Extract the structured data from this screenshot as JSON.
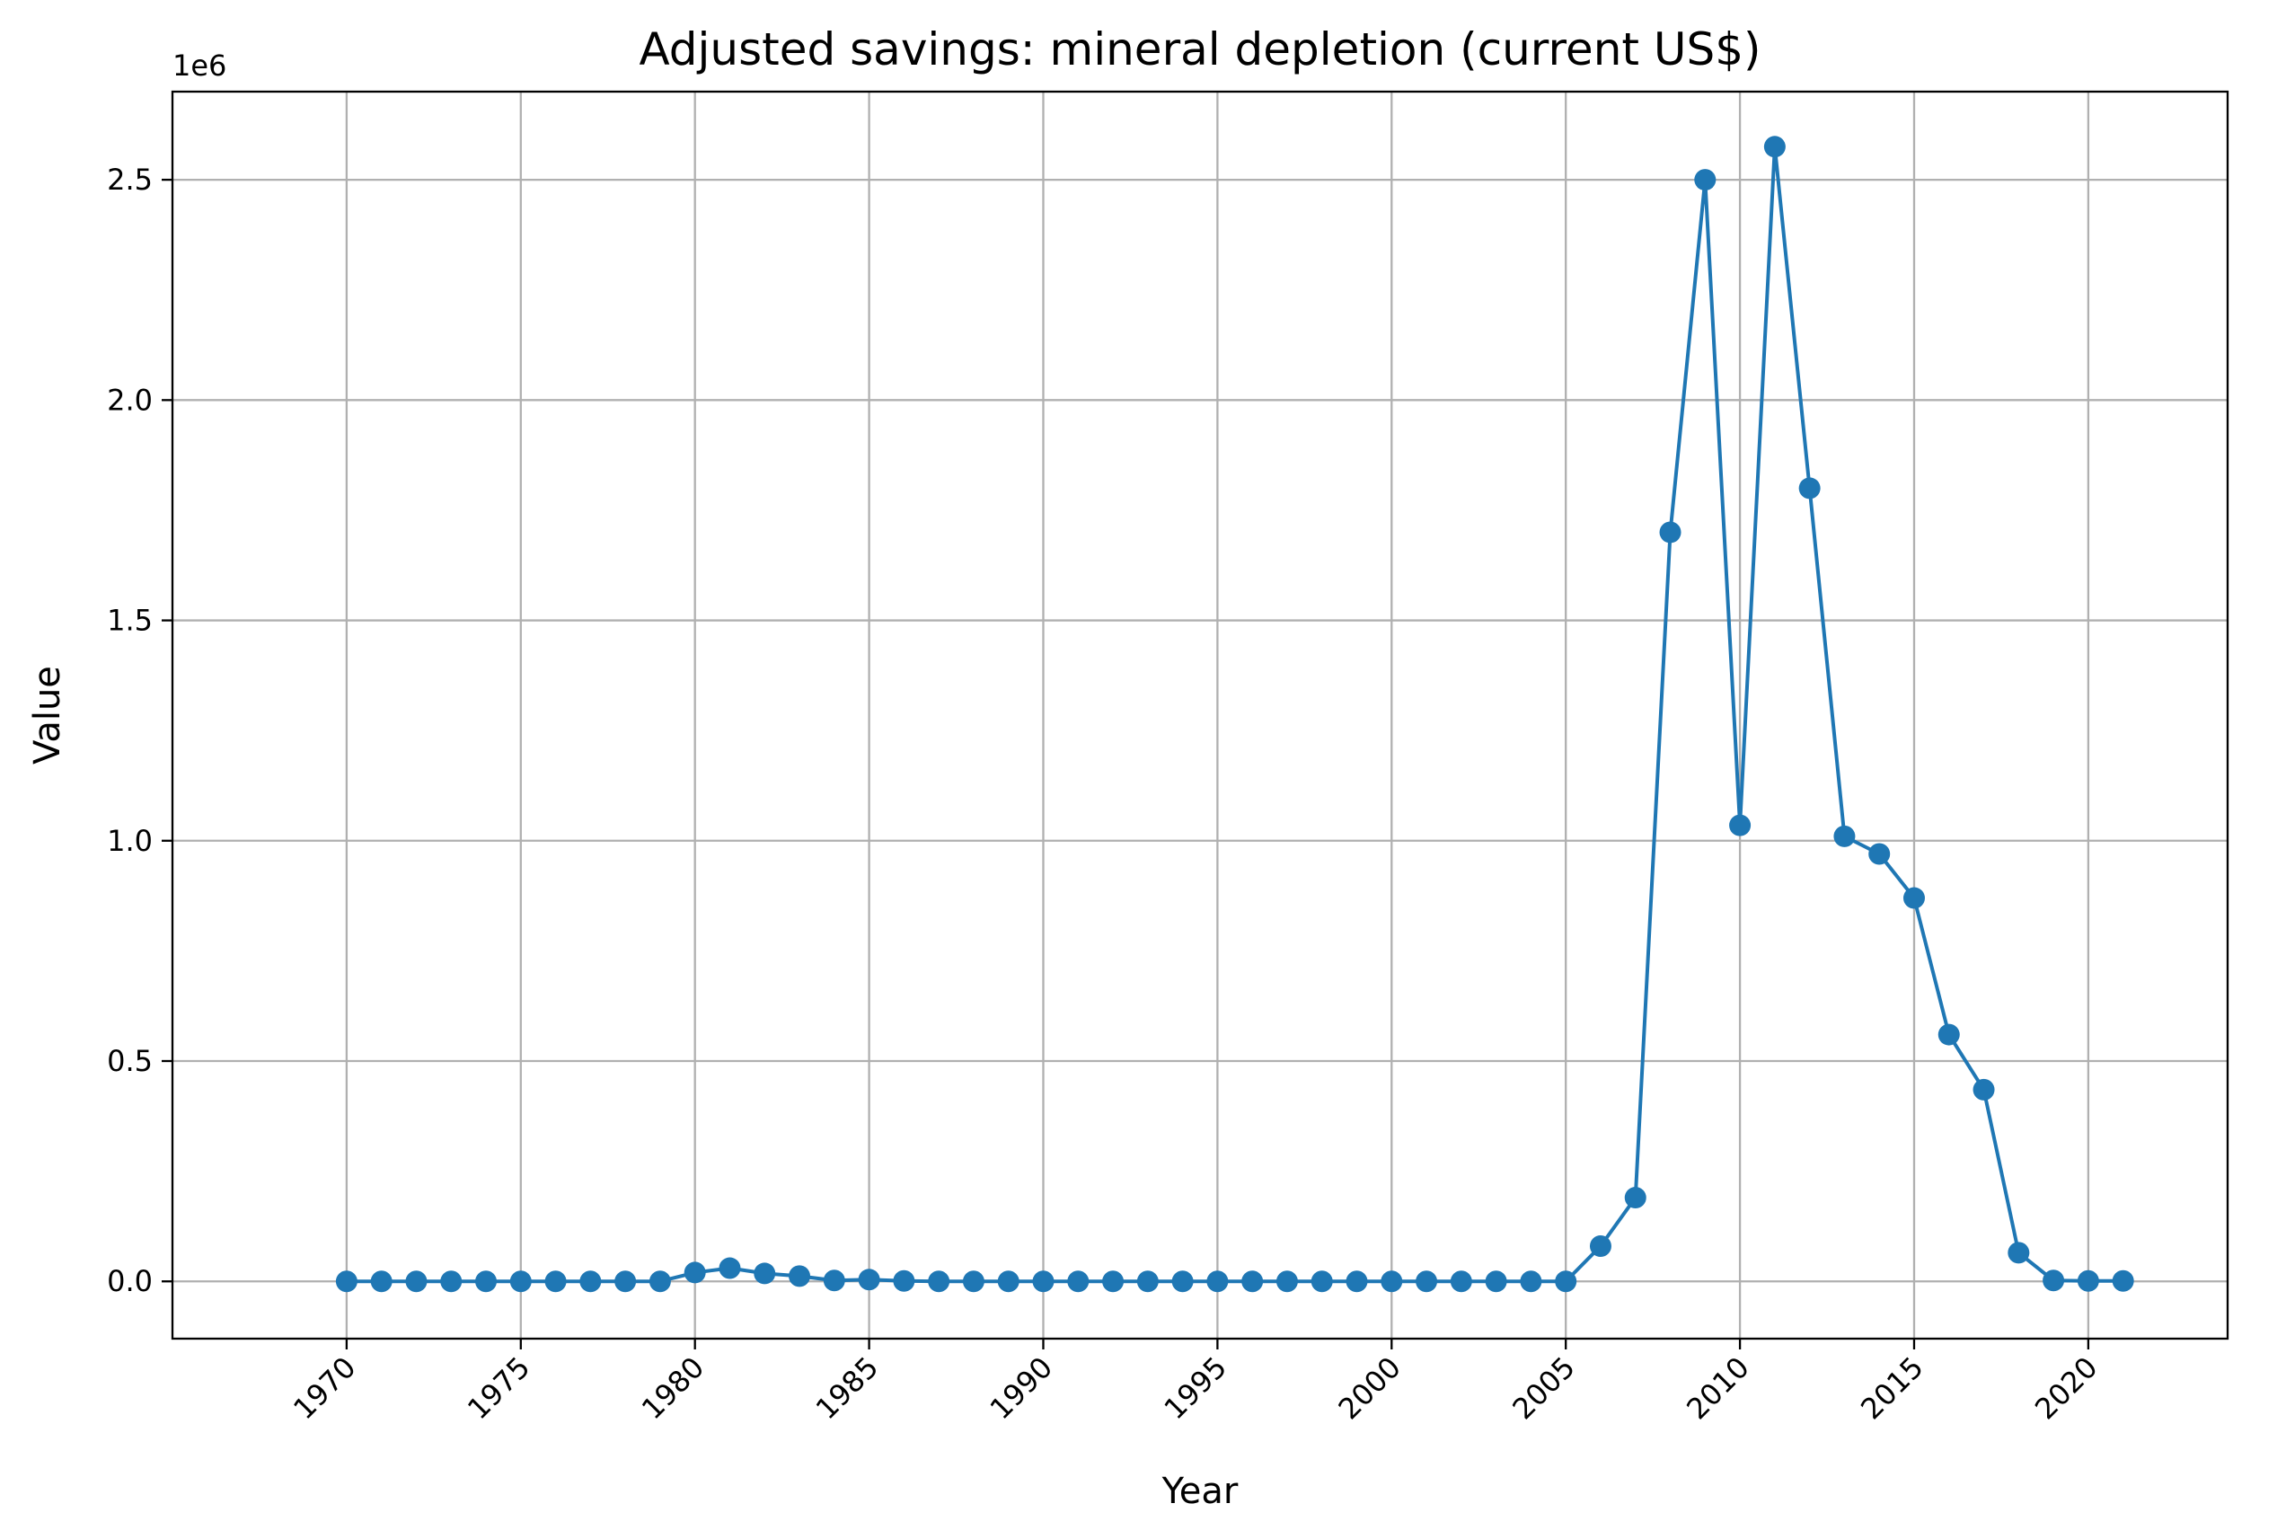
{
  "chart_data": {
    "type": "line",
    "title": "Adjusted savings: mineral depletion (current US$)",
    "xlabel": "Year",
    "ylabel": "Value",
    "y_offset_label": "1e6",
    "xlim": [
      1965,
      2024
    ],
    "ylim": [
      -0.13,
      2.7
    ],
    "y_units_multiplier": 1000000,
    "xticks": [
      1970,
      1975,
      1980,
      1985,
      1990,
      1995,
      2000,
      2005,
      2010,
      2015,
      2020
    ],
    "yticks": [
      0.0,
      0.5,
      1.0,
      1.5,
      2.0,
      2.5
    ],
    "ytick_labels": [
      "0.0",
      "0.5",
      "1.0",
      "1.5",
      "2.0",
      "2.5"
    ],
    "grid": true,
    "series": [
      {
        "color": "#1f77b4",
        "marker": "circle",
        "x": [
          1970,
          1971,
          1972,
          1973,
          1974,
          1975,
          1976,
          1977,
          1978,
          1979,
          1980,
          1981,
          1982,
          1983,
          1984,
          1985,
          1986,
          1987,
          1988,
          1989,
          1990,
          1991,
          1992,
          1993,
          1994,
          1995,
          1996,
          1997,
          1998,
          1999,
          2000,
          2001,
          2002,
          2003,
          2004,
          2005,
          2006,
          2007,
          2008,
          2009,
          2010,
          2011,
          2012,
          2013,
          2014,
          2015,
          2016,
          2017,
          2018,
          2019,
          2020,
          2021
        ],
        "values": [
          0,
          0,
          0,
          0,
          0,
          0,
          0,
          0,
          0,
          0,
          0.02,
          0.03,
          0.018,
          0.012,
          0.002,
          0.004,
          0.001,
          0,
          0,
          0,
          0,
          0,
          0,
          0,
          0,
          0,
          0,
          0,
          0,
          0,
          0,
          0,
          0,
          0,
          0,
          0,
          0.08,
          0.19,
          1.7,
          2.5,
          1.035,
          2.575,
          1.8,
          1.01,
          0.97,
          0.87,
          0.56,
          0.435,
          0.065,
          0.002,
          0.001,
          0.001
        ]
      }
    ]
  }
}
